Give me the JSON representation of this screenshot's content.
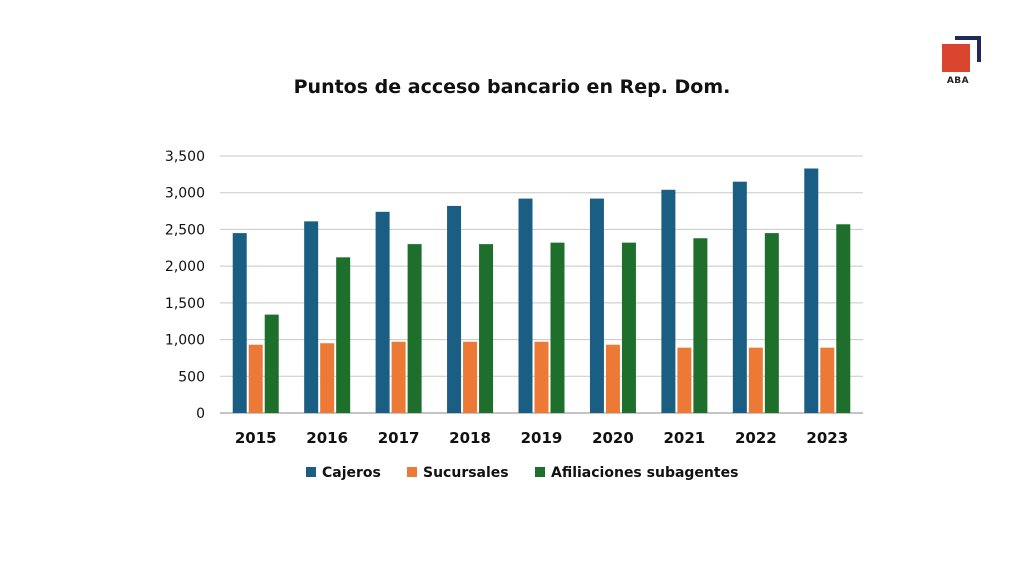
{
  "logo": {
    "text": "ABA"
  },
  "chart_data": {
    "type": "bar",
    "title": "Puntos de acceso bancario en Rep. Dom.",
    "categories": [
      "2015",
      "2016",
      "2017",
      "2018",
      "2019",
      "2020",
      "2021",
      "2022",
      "2023"
    ],
    "series": [
      {
        "name": "Cajeros",
        "color": "#1b5e84",
        "values": [
          2450,
          2610,
          2740,
          2820,
          2920,
          2920,
          3040,
          3150,
          3330
        ]
      },
      {
        "name": "Sucursales",
        "color": "#ec7a36",
        "values": [
          930,
          950,
          970,
          970,
          970,
          930,
          890,
          890,
          890
        ]
      },
      {
        "name": "Afiliaciones subagentes",
        "color": "#1e6f2c",
        "values": [
          1340,
          2120,
          2300,
          2300,
          2320,
          2320,
          2380,
          2450,
          2570
        ]
      }
    ],
    "yticks": [
      "0",
      "500",
      "1,000",
      "1,500",
      "2,000",
      "2,500",
      "3,000",
      "3,500"
    ],
    "ylim": [
      0,
      3500
    ],
    "grid": true,
    "legend": "bottom"
  }
}
